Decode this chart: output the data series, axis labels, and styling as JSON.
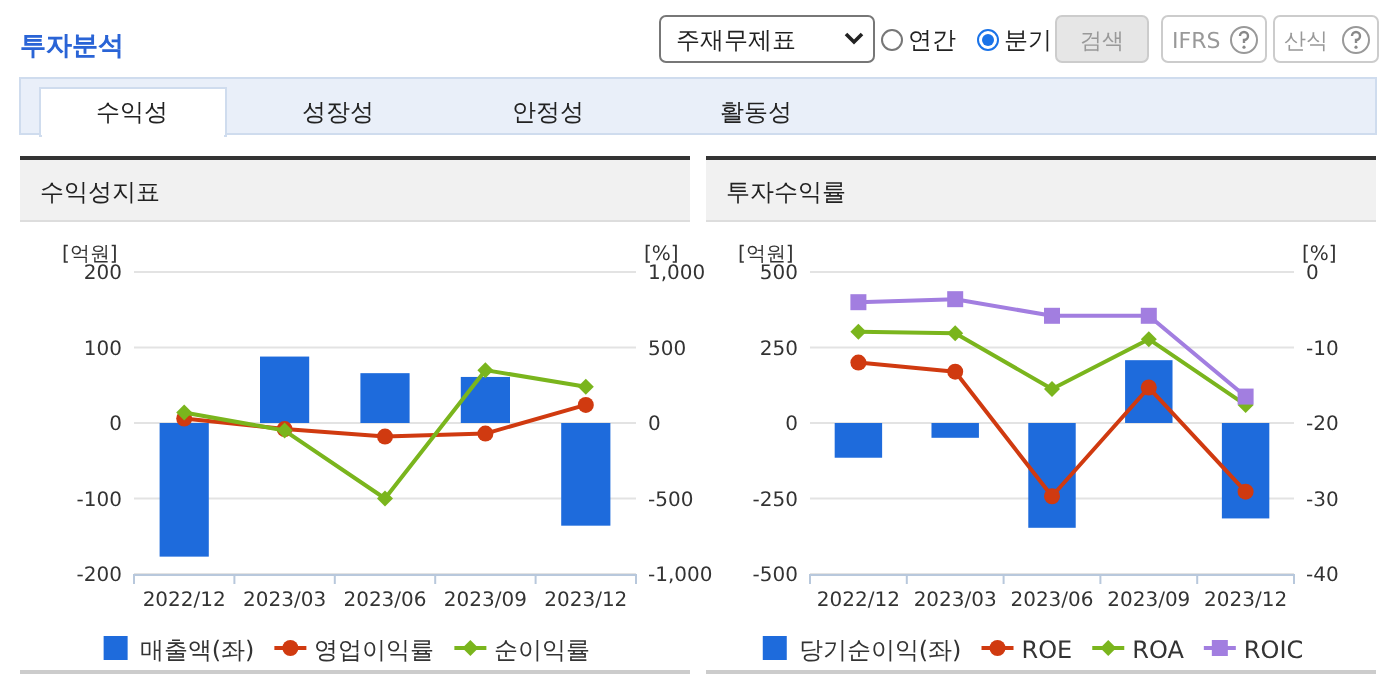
{
  "chart_data": [
    {
      "type": "other",
      "title": "투자분석",
      "annotations": [
        "주재무제표",
        "연간",
        "분기",
        "검색",
        "IFRS",
        "산식",
        "수익성",
        "성장성",
        "안정성",
        "활동성"
      ]
    },
    {
      "type": "bar",
      "title": "수익성지표",
      "ylabel": "[억원]",
      "y2label": "[%]",
      "categories": [
        "2022/12",
        "2023/03",
        "2023/06",
        "2023/09",
        "2023/12"
      ],
      "series": [
        {
          "name": "매출액(좌)",
          "type": "bar",
          "color": "#1e6bdc",
          "values": [
            -177,
            88,
            66,
            61,
            -136
          ]
        },
        {
          "name": "영업이익률",
          "type": "line",
          "axis": "y2",
          "marker": "circle",
          "color": "#d03a10",
          "values": [
            30,
            -40,
            -90,
            -70,
            120
          ]
        },
        {
          "name": "순이익률",
          "type": "line",
          "axis": "y2",
          "marker": "diamond",
          "color": "#7ab51d",
          "values": [
            70,
            -50,
            -500,
            350,
            240
          ]
        }
      ],
      "ylim": [
        -200,
        200
      ],
      "yticks": [
        -200,
        -100,
        0,
        100,
        200
      ],
      "y2lim": [
        -1000,
        1000
      ],
      "y2ticks": [
        {
          "value": -1000,
          "label": "-1,000"
        },
        -500,
        0,
        500,
        {
          "value": 1000,
          "label": "1,000"
        }
      ],
      "grid": "y",
      "legend": "bottom"
    },
    {
      "type": "bar",
      "title": "투자수익률",
      "ylabel": "[억원]",
      "y2label": "[%]",
      "categories": [
        "2022/12",
        "2023/03",
        "2023/06",
        "2023/09",
        "2023/12"
      ],
      "series": [
        {
          "name": "당기순이익(좌)",
          "type": "bar",
          "color": "#1e6bdc",
          "values": [
            -115,
            -49,
            -347,
            208,
            -316
          ]
        },
        {
          "name": "ROE",
          "type": "line",
          "axis": "y2",
          "marker": "circle",
          "color": "#d03a10",
          "values": [
            -12.0,
            -13.2,
            -29.7,
            -15.3,
            -29.1
          ]
        },
        {
          "name": "ROA",
          "type": "line",
          "axis": "y2",
          "marker": "diamond",
          "color": "#7ab51d",
          "values": [
            -7.9,
            -8.1,
            -15.5,
            -8.9,
            -17.6
          ]
        },
        {
          "name": "ROIC",
          "type": "line",
          "axis": "y2",
          "marker": "square",
          "color": "#a27ee0",
          "values": [
            -4.0,
            -3.6,
            -5.8,
            -5.8,
            -16.5
          ]
        }
      ],
      "ylim": [
        -500,
        500
      ],
      "yticks": [
        -500,
        -250,
        0,
        250,
        500
      ],
      "y2lim": [
        -40,
        0
      ],
      "y2ticks": [
        -40,
        -30,
        -20,
        -10,
        0
      ],
      "grid": "y",
      "legend": "bottom"
    }
  ]
}
